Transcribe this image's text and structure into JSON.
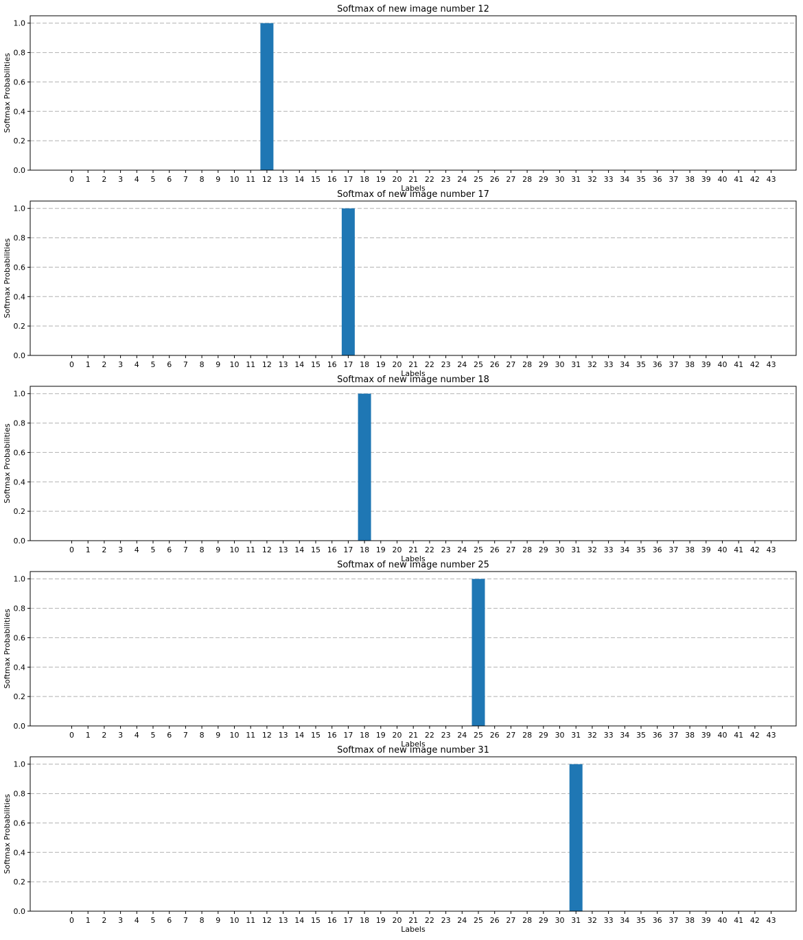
{
  "chart_data": [
    {
      "type": "bar",
      "title": "Softmax of new image number 12",
      "xlabel": "Labels",
      "ylabel": "Softmax Probabilities",
      "categories": [
        "0",
        "1",
        "2",
        "3",
        "4",
        "5",
        "6",
        "7",
        "8",
        "9",
        "10",
        "11",
        "12",
        "13",
        "14",
        "15",
        "16",
        "17",
        "18",
        "19",
        "20",
        "21",
        "22",
        "23",
        "24",
        "25",
        "26",
        "27",
        "28",
        "29",
        "30",
        "31",
        "32",
        "33",
        "34",
        "35",
        "36",
        "37",
        "38",
        "39",
        "40",
        "41",
        "42",
        "43"
      ],
      "values": [
        0,
        0,
        0,
        0,
        0,
        0,
        0,
        0,
        0,
        0,
        0,
        0,
        1.0,
        0,
        0,
        0,
        0,
        0,
        0,
        0,
        0,
        0,
        0,
        0,
        0,
        0,
        0,
        0,
        0,
        0,
        0,
        0,
        0,
        0,
        0,
        0,
        0,
        0,
        0,
        0,
        0,
        0,
        0,
        0
      ],
      "ylim": [
        0,
        1.05
      ],
      "yticks": [
        "0.0",
        "0.2",
        "0.4",
        "0.6",
        "0.8",
        "1.0"
      ],
      "grid": "y-dashed",
      "bar_color": "#1f77b4"
    },
    {
      "type": "bar",
      "title": "Softmax of new image number 17",
      "xlabel": "Labels",
      "ylabel": "Softmax Probabilities",
      "categories": [
        "0",
        "1",
        "2",
        "3",
        "4",
        "5",
        "6",
        "7",
        "8",
        "9",
        "10",
        "11",
        "12",
        "13",
        "14",
        "15",
        "16",
        "17",
        "18",
        "19",
        "20",
        "21",
        "22",
        "23",
        "24",
        "25",
        "26",
        "27",
        "28",
        "29",
        "30",
        "31",
        "32",
        "33",
        "34",
        "35",
        "36",
        "37",
        "38",
        "39",
        "40",
        "41",
        "42",
        "43"
      ],
      "values": [
        0,
        0,
        0,
        0,
        0,
        0,
        0,
        0,
        0,
        0,
        0,
        0,
        0,
        0,
        0,
        0,
        0,
        1.0,
        0,
        0,
        0,
        0,
        0,
        0,
        0,
        0,
        0,
        0,
        0,
        0,
        0,
        0,
        0,
        0,
        0,
        0,
        0,
        0,
        0,
        0,
        0,
        0,
        0,
        0
      ],
      "ylim": [
        0,
        1.05
      ],
      "yticks": [
        "0.0",
        "0.2",
        "0.4",
        "0.6",
        "0.8",
        "1.0"
      ],
      "grid": "y-dashed",
      "bar_color": "#1f77b4"
    },
    {
      "type": "bar",
      "title": "Softmax of new image number 18",
      "xlabel": "Labels",
      "ylabel": "Softmax Probabilities",
      "categories": [
        "0",
        "1",
        "2",
        "3",
        "4",
        "5",
        "6",
        "7",
        "8",
        "9",
        "10",
        "11",
        "12",
        "13",
        "14",
        "15",
        "16",
        "17",
        "18",
        "19",
        "20",
        "21",
        "22",
        "23",
        "24",
        "25",
        "26",
        "27",
        "28",
        "29",
        "30",
        "31",
        "32",
        "33",
        "34",
        "35",
        "36",
        "37",
        "38",
        "39",
        "40",
        "41",
        "42",
        "43"
      ],
      "values": [
        0,
        0,
        0,
        0,
        0,
        0,
        0,
        0,
        0,
        0,
        0,
        0,
        0,
        0,
        0,
        0,
        0,
        0,
        1.0,
        0,
        0,
        0,
        0,
        0,
        0,
        0,
        0,
        0,
        0,
        0,
        0,
        0,
        0,
        0,
        0,
        0,
        0,
        0,
        0,
        0,
        0,
        0,
        0,
        0
      ],
      "ylim": [
        0,
        1.05
      ],
      "yticks": [
        "0.0",
        "0.2",
        "0.4",
        "0.6",
        "0.8",
        "1.0"
      ],
      "grid": "y-dashed",
      "bar_color": "#1f77b4"
    },
    {
      "type": "bar",
      "title": "Softmax of new image number 25",
      "xlabel": "Labels",
      "ylabel": "Softmax Probabilities",
      "categories": [
        "0",
        "1",
        "2",
        "3",
        "4",
        "5",
        "6",
        "7",
        "8",
        "9",
        "10",
        "11",
        "12",
        "13",
        "14",
        "15",
        "16",
        "17",
        "18",
        "19",
        "20",
        "21",
        "22",
        "23",
        "24",
        "25",
        "26",
        "27",
        "28",
        "29",
        "30",
        "31",
        "32",
        "33",
        "34",
        "35",
        "36",
        "37",
        "38",
        "39",
        "40",
        "41",
        "42",
        "43"
      ],
      "values": [
        0,
        0,
        0,
        0,
        0,
        0,
        0,
        0,
        0,
        0,
        0,
        0,
        0,
        0,
        0,
        0,
        0,
        0,
        0,
        0,
        0,
        0,
        0,
        0,
        0,
        1.0,
        0,
        0,
        0,
        0,
        0,
        0,
        0,
        0,
        0,
        0,
        0,
        0,
        0,
        0,
        0,
        0,
        0,
        0
      ],
      "ylim": [
        0,
        1.05
      ],
      "yticks": [
        "0.0",
        "0.2",
        "0.4",
        "0.6",
        "0.8",
        "1.0"
      ],
      "grid": "y-dashed",
      "bar_color": "#1f77b4"
    },
    {
      "type": "bar",
      "title": "Softmax of new image number 31",
      "xlabel": "Labels",
      "ylabel": "Softmax Probabilities",
      "categories": [
        "0",
        "1",
        "2",
        "3",
        "4",
        "5",
        "6",
        "7",
        "8",
        "9",
        "10",
        "11",
        "12",
        "13",
        "14",
        "15",
        "16",
        "17",
        "18",
        "19",
        "20",
        "21",
        "22",
        "23",
        "24",
        "25",
        "26",
        "27",
        "28",
        "29",
        "30",
        "31",
        "32",
        "33",
        "34",
        "35",
        "36",
        "37",
        "38",
        "39",
        "40",
        "41",
        "42",
        "43"
      ],
      "values": [
        0,
        0,
        0,
        0,
        0,
        0,
        0,
        0,
        0,
        0,
        0,
        0,
        0,
        0,
        0,
        0,
        0,
        0,
        0,
        0,
        0,
        0,
        0,
        0,
        0,
        0,
        0,
        0,
        0,
        0,
        0,
        1.0,
        0,
        0,
        0,
        0,
        0,
        0,
        0,
        0,
        0,
        0,
        0,
        0
      ],
      "ylim": [
        0,
        1.05
      ],
      "yticks": [
        "0.0",
        "0.2",
        "0.4",
        "0.6",
        "0.8",
        "1.0"
      ],
      "grid": "y-dashed",
      "bar_color": "#1f77b4"
    }
  ]
}
